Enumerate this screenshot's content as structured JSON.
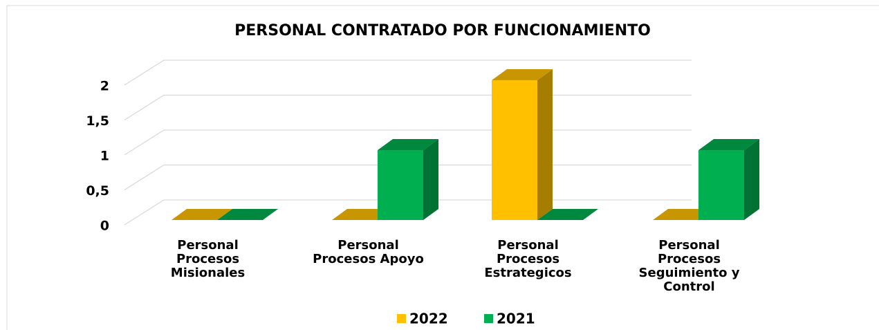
{
  "chart_data": {
    "type": "bar3d",
    "title": "PERSONAL CONTRATADO POR FUNCIONAMIENTO",
    "categories": [
      "Personal Procesos Misionales",
      "Personal Procesos Apoyo",
      "Personal Procesos Estrategicos",
      "Personal Procesos Seguimiento y Control"
    ],
    "series": [
      {
        "name": "2022",
        "color": "#ffc000",
        "values": [
          0,
          0,
          2,
          0
        ]
      },
      {
        "name": "2021",
        "color": "#00b050",
        "values": [
          0,
          1,
          0,
          1
        ]
      }
    ],
    "ylim": [
      0,
      2
    ],
    "yticks": [
      0,
      {
        "value": 0.5,
        "label": "0,5"
      },
      1,
      {
        "value": 1.5,
        "label": "1,5"
      },
      2
    ],
    "grid": true,
    "legend": "bottom"
  }
}
